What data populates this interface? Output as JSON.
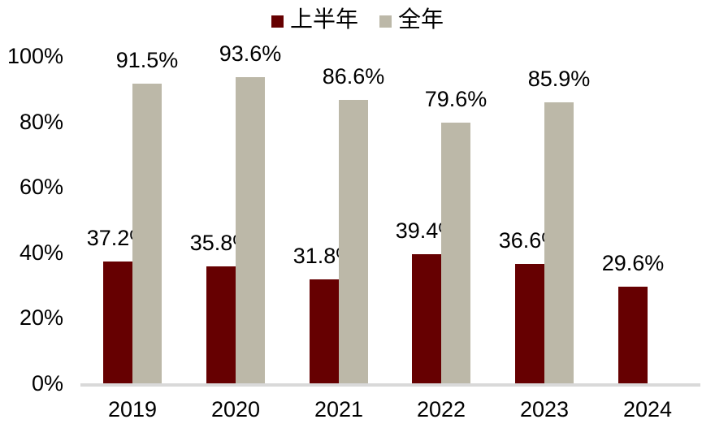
{
  "chart_data": {
    "type": "bar",
    "categories": [
      "2019",
      "2020",
      "2021",
      "2022",
      "2023",
      "2024"
    ],
    "series": [
      {
        "name": "上半年",
        "color": "#660001",
        "values": [
          37.2,
          35.8,
          31.8,
          39.4,
          36.6,
          29.6
        ],
        "labels": [
          "37.2%",
          "35.8%",
          "31.8%",
          "39.4%",
          "36.6%",
          "29.6%"
        ]
      },
      {
        "name": "全年",
        "color": "#BCB8A8",
        "values": [
          91.5,
          93.6,
          86.6,
          79.6,
          85.9,
          null
        ],
        "labels": [
          "91.5%",
          "93.6%",
          "86.6%",
          "79.6%",
          "85.9%",
          null
        ]
      }
    ],
    "title": "",
    "xlabel": "",
    "ylabel": "",
    "ylim": [
      0,
      100
    ],
    "yticks": [
      0,
      20,
      40,
      60,
      80,
      100
    ],
    "ytick_labels": [
      "0%",
      "20%",
      "40%",
      "60%",
      "80%",
      "100%"
    ],
    "grid": false,
    "legend_position": "top",
    "baseline_color": "#D9D9D9",
    "background_color": "#FFFFFF",
    "text_color": "#000000"
  }
}
